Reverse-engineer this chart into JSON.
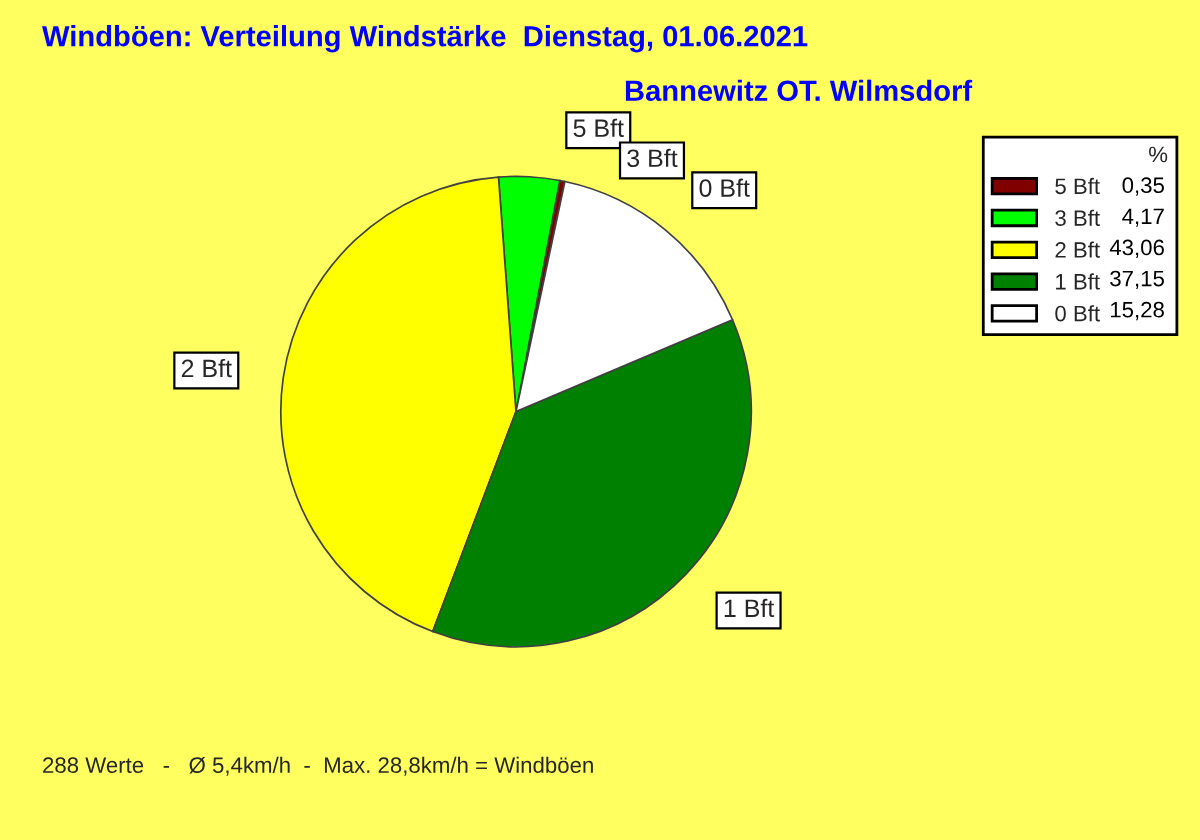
{
  "chart_data": {
    "type": "pie",
    "title": "Windböen: Verteilung Windstärke  Dienstag, 01.06.2021",
    "subtitle": "Bannewitz OT. Wilmsdorf",
    "categories": [
      "5 Bft",
      "3 Bft",
      "2 Bft",
      "1 Bft",
      "0 Bft"
    ],
    "values": [
      0.35,
      4.17,
      43.06,
      37.15,
      15.28
    ],
    "value_labels": [
      "0,35",
      "4,17",
      "43,06",
      "37,15",
      "15,28"
    ],
    "colors": [
      "#800000",
      "#00ff00",
      "#ffff00",
      "#008000",
      "#ffffff"
    ],
    "legend_title": "%",
    "legend": "top right",
    "annotations": [
      "288 Werte   -   Ø 5,4km/h  -  Max. 28,8km/h = Windböen"
    ]
  }
}
